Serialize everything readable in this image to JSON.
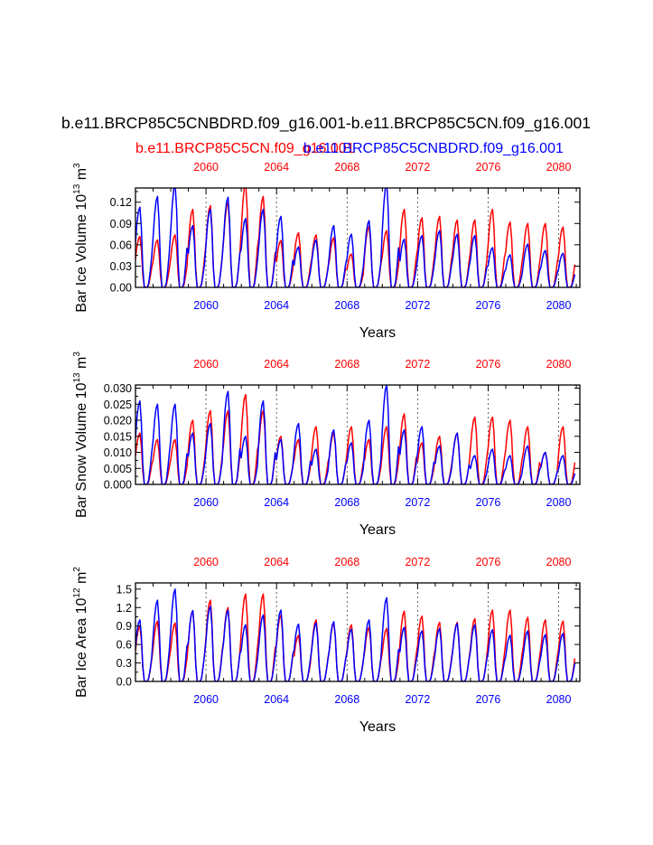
{
  "title": "b.e11.BRCP85C5CNBDRD.f09_g16.001-b.e11.BRCP85C5CN.f09_g16.001",
  "legend": {
    "red_label": "b.e11.BRCP85C5CN.f09_g16.001",
    "blue_label": "b.e11.BRCP85C5CNBDRD.f09_g16.001"
  },
  "colors": {
    "red": "#ff0000",
    "blue": "#0000ff"
  },
  "chart_data": [
    {
      "type": "line",
      "id": "ice-volume",
      "ylabel_main": "Bar Ice Volume 10",
      "ylabel_exp": "13",
      "ylabel_unit": " m",
      "ylabel_unit_exp": "3",
      "xlabel": "Years",
      "xlim": [
        2056,
        2081.2
      ],
      "ylim": [
        0,
        0.14
      ],
      "yticks": [
        0.0,
        0.03,
        0.06,
        0.09,
        0.12
      ],
      "ytick_labels": [
        "0.00",
        "0.03",
        "0.06",
        "0.09",
        "0.12"
      ],
      "xticks": [
        2060,
        2064,
        2068,
        2072,
        2076,
        2080
      ],
      "xtick_labels": [
        "2060",
        "2064",
        "2068",
        "2072",
        "2076",
        "2080"
      ],
      "series": [
        {
          "name": "b.e11.BRCP85C5CN.f09_g16.001",
          "color": "#ff0000",
          "annual_peaks": [
            0.072,
            0.067,
            0.074,
            0.11,
            0.115,
            0.12,
            0.147,
            0.128,
            0.066,
            0.077,
            0.074,
            0.07,
            0.047,
            0.086,
            0.08,
            0.11,
            0.098,
            0.1,
            0.095,
            0.095,
            0.11,
            0.092,
            0.09,
            0.09,
            0.085
          ]
        },
        {
          "name": "b.e11.BRCP85C5CNBDRD.f09_g16.001",
          "color": "#0000ff",
          "annual_peaks": [
            0.113,
            0.128,
            0.145,
            0.087,
            0.11,
            0.127,
            0.097,
            0.11,
            0.1,
            0.057,
            0.067,
            0.087,
            0.075,
            0.094,
            0.147,
            0.068,
            0.073,
            0.08,
            0.075,
            0.073,
            0.056,
            0.046,
            0.061,
            0.052,
            0.048
          ]
        }
      ]
    },
    {
      "type": "line",
      "id": "snow-volume",
      "ylabel_main": "Bar Snow Volume 10",
      "ylabel_exp": "13",
      "ylabel_unit": " m",
      "ylabel_unit_exp": "3",
      "xlabel": "Years",
      "xlim": [
        2056,
        2081.2
      ],
      "ylim": [
        0,
        0.031
      ],
      "yticks": [
        0.0,
        0.005,
        0.01,
        0.015,
        0.02,
        0.025,
        0.03
      ],
      "ytick_labels": [
        "0.000",
        "0.005",
        "0.010",
        "0.015",
        "0.020",
        "0.025",
        "0.030"
      ],
      "xticks": [
        2060,
        2064,
        2068,
        2072,
        2076,
        2080
      ],
      "xtick_labels": [
        "2060",
        "2064",
        "2068",
        "2072",
        "2076",
        "2080"
      ],
      "series": [
        {
          "name": "b.e11.BRCP85C5CN.f09_g16.001",
          "color": "#ff0000",
          "annual_peaks": [
            0.016,
            0.014,
            0.014,
            0.02,
            0.023,
            0.023,
            0.028,
            0.023,
            0.015,
            0.014,
            0.018,
            0.016,
            0.018,
            0.014,
            0.018,
            0.022,
            0.013,
            0.015,
            0.016,
            0.021,
            0.021,
            0.02,
            0.018,
            0.01,
            0.018
          ]
        },
        {
          "name": "b.e11.BRCP85C5CNBDRD.f09_g16.001",
          "color": "#0000ff",
          "annual_peaks": [
            0.026,
            0.025,
            0.025,
            0.016,
            0.019,
            0.029,
            0.015,
            0.026,
            0.014,
            0.019,
            0.011,
            0.017,
            0.013,
            0.02,
            0.031,
            0.017,
            0.018,
            0.012,
            0.016,
            0.009,
            0.011,
            0.009,
            0.012,
            0.01,
            0.009
          ]
        }
      ]
    },
    {
      "type": "line",
      "id": "ice-area",
      "ylabel_main": "Bar Ice Area 10",
      "ylabel_exp": "12",
      "ylabel_unit": " m",
      "ylabel_unit_exp": "2",
      "xlabel": "Years",
      "xlim": [
        2056,
        2081.2
      ],
      "ylim": [
        0,
        1.6
      ],
      "yticks": [
        0.0,
        0.3,
        0.6,
        0.9,
        1.2,
        1.5
      ],
      "ytick_labels": [
        "0.0",
        "0.3",
        "0.6",
        "0.9",
        "1.2",
        "1.5"
      ],
      "xticks": [
        2060,
        2064,
        2068,
        2072,
        2076,
        2080
      ],
      "xtick_labels": [
        "2060",
        "2064",
        "2068",
        "2072",
        "2076",
        "2080"
      ],
      "series": [
        {
          "name": "b.e11.BRCP85C5CN.f09_g16.001",
          "color": "#ff0000",
          "annual_peaks": [
            0.9,
            0.98,
            0.95,
            1.15,
            1.32,
            1.2,
            1.42,
            1.42,
            1.08,
            0.75,
            1.0,
            0.95,
            0.92,
            0.88,
            0.86,
            1.14,
            1.06,
            0.96,
            0.96,
            1.02,
            1.16,
            1.16,
            1.04,
            1.0,
            0.98
          ]
        },
        {
          "name": "b.e11.BRCP85C5CNBDRD.f09_g16.001",
          "color": "#0000ff",
          "annual_peaks": [
            1.0,
            1.32,
            1.5,
            1.15,
            1.22,
            1.16,
            0.92,
            1.08,
            1.16,
            0.93,
            0.95,
            0.97,
            0.85,
            1.0,
            1.36,
            0.88,
            0.82,
            0.86,
            0.94,
            0.92,
            0.84,
            0.75,
            0.82,
            0.76,
            0.78
          ]
        }
      ]
    }
  ]
}
